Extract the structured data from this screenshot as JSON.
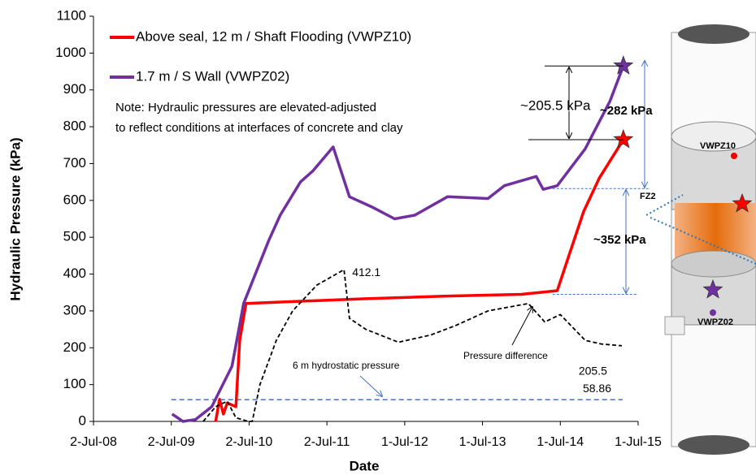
{
  "chart_data": {
    "type": "line",
    "x_label": "Date",
    "y_label": "Hydraulic Pressure (kPa)",
    "xlim": [
      2008.5,
      2015.5
    ],
    "xticks": [
      {
        "value": 2008.5,
        "label": "2-Jul-08"
      },
      {
        "value": 2009.5,
        "label": "2-Jul-09"
      },
      {
        "value": 2010.5,
        "label": "2-Jul-10"
      },
      {
        "value": 2011.5,
        "label": "2-Jul-11"
      },
      {
        "value": 2012.5,
        "label": "1-Jul-12"
      },
      {
        "value": 2013.5,
        "label": "1-Jul-13"
      },
      {
        "value": 2014.5,
        "label": "1-Jul-14"
      },
      {
        "value": 2015.5,
        "label": "1-Jul-15"
      }
    ],
    "ylim": [
      0,
      1100
    ],
    "yticks": [
      0,
      100,
      200,
      300,
      400,
      500,
      600,
      700,
      800,
      900,
      1000,
      1100
    ],
    "legend": "top-left",
    "series": [
      {
        "name": "Above seal, 12 m / Shaft Flooding (VWPZ10)",
        "color": "#ff0000",
        "style": "solid",
        "x": [
          2010.07,
          2010.12,
          2010.17,
          2010.22,
          2010.33,
          2010.38,
          2010.46,
          2011.0,
          2012.0,
          2013.0,
          2014.0,
          2014.46,
          2014.61,
          2014.8,
          2015.0,
          2015.31
        ],
        "values": [
          0,
          60,
          20,
          50,
          40,
          220,
          320,
          325,
          333,
          340,
          345,
          355,
          450,
          570,
          660,
          765
        ]
      },
      {
        "name": "1.7 m / S Wall (VWPZ02)",
        "color": "#7030a0",
        "style": "solid",
        "x": [
          2009.51,
          2009.65,
          2009.81,
          2010.02,
          2010.28,
          2010.43,
          2010.75,
          2010.9,
          2011.16,
          2011.32,
          2011.48,
          2011.58,
          2011.79,
          2012.1,
          2012.37,
          2012.63,
          2013.05,
          2013.57,
          2013.78,
          2014.19,
          2014.28,
          2014.46,
          2014.82,
          2015.14,
          2015.31
        ],
        "values": [
          20,
          0,
          5,
          40,
          150,
          320,
          490,
          560,
          650,
          680,
          720,
          745,
          610,
          580,
          550,
          560,
          610,
          605,
          640,
          665,
          630,
          640,
          740,
          870,
          965
        ]
      },
      {
        "name": "Pressure difference",
        "color": "#000000",
        "style": "dashed",
        "x": [
          2009.91,
          2010.07,
          2010.22,
          2010.33,
          2010.49,
          2010.54,
          2010.64,
          2010.85,
          2011.06,
          2011.37,
          2011.72,
          2011.79,
          2012.0,
          2012.42,
          2012.84,
          2013.15,
          2013.57,
          2014.09,
          2014.3,
          2014.5,
          2014.82,
          2015.03,
          2015.29
        ],
        "values": [
          0,
          40,
          55,
          10,
          0,
          0,
          100,
          220,
          300,
          370,
          412.1,
          280,
          250,
          215,
          235,
          260,
          300,
          320,
          270,
          290,
          220,
          210,
          205.5
        ]
      }
    ],
    "reference_lines": [
      {
        "value": 58.86,
        "color": "#4472c4"
      },
      {
        "value": 632,
        "color": "#4472c4"
      },
      {
        "value": 345,
        "color": "#4472c4"
      }
    ],
    "annotations": [
      "Note: Hydraulic pressures are elevated-adjusted",
      "to reflect conditions at interfaces of concrete and clay",
      "~205.5 kPa",
      "~282 kPa",
      "~352 kPa",
      "6 m hydrostatic pressure",
      "FZ2"
    ],
    "diagram_labels": [
      "VWPZ10",
      "VWPZ02"
    ]
  }
}
